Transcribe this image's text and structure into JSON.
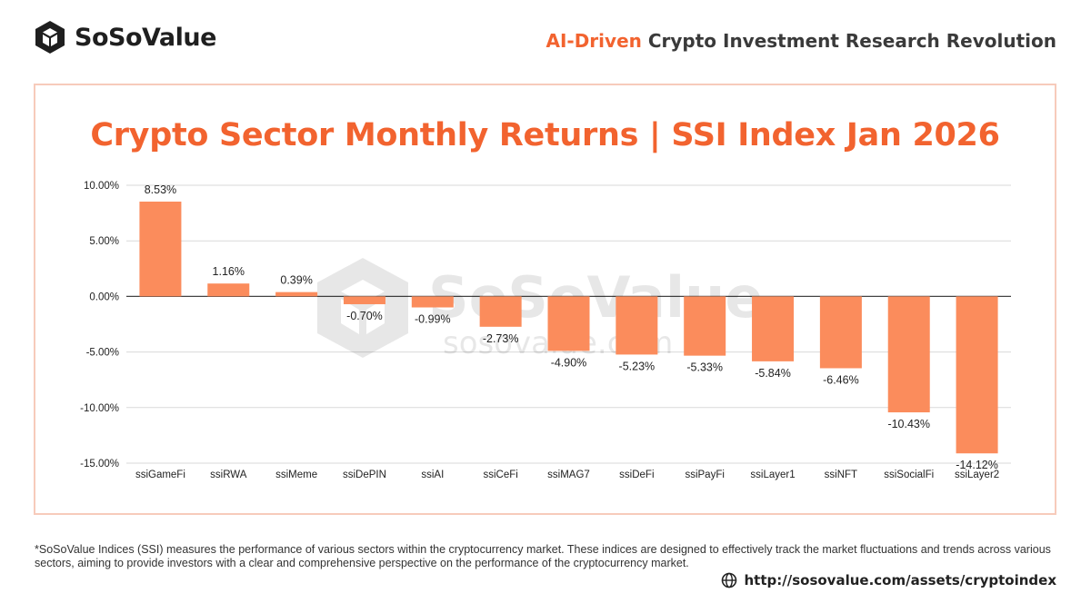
{
  "brand": {
    "logo_text": "SoSoValue",
    "logo_icon": "sosovalue-cube-icon"
  },
  "tagline": {
    "accent": "AI-Driven",
    "rest": " Crypto Investment Research Revolution"
  },
  "watermark": {
    "main": "SoSoValue",
    "sub": "sosovalue.com"
  },
  "colors": {
    "accent": "#f2632f",
    "bar": "#fb8c5c",
    "card_border": "#f7cbbb"
  },
  "chart_data": {
    "type": "bar",
    "title": "Crypto Sector Monthly Returns | SSI Index Jan 2026",
    "xlabel": "",
    "ylabel": "",
    "categories": [
      "ssiGameFi",
      "ssiRWA",
      "ssiMeme",
      "ssiDePIN",
      "ssiAI",
      "ssiCeFi",
      "ssiMAG7",
      "ssiDeFi",
      "ssiPayFi",
      "ssiLayer1",
      "ssiNFT",
      "ssiSocialFi",
      "ssiLayer2"
    ],
    "values": [
      8.53,
      1.16,
      0.39,
      -0.7,
      -0.99,
      -2.73,
      -4.9,
      -5.23,
      -5.33,
      -5.84,
      -6.46,
      -10.43,
      -14.12
    ],
    "data_labels": [
      "8.53%",
      "1.16%",
      "0.39%",
      "-0.70%",
      "-0.99%",
      "-2.73%",
      "-4.90%",
      "-5.23%",
      "-5.33%",
      "-5.84%",
      "-6.46%",
      "-10.43%",
      "-14.12%"
    ],
    "ylim": [
      -15,
      10
    ],
    "yticks": [
      10,
      5,
      0,
      -5,
      -10,
      -15
    ],
    "ytick_labels": [
      "10.00%",
      "5.00%",
      "0.00%",
      "-5.00%",
      "-10.00%",
      "-15.00%"
    ],
    "grid": true,
    "legend": "none"
  },
  "footer": {
    "note": "*SoSoValue Indices (SSI) measures the performance of various sectors within the cryptocurrency market. These indices are designed to effectively track the market fluctuations and trends across various sectors, aiming to provide investors with a clear and comprehensive perspective on the performance of the cryptocurrency market.",
    "link": "http://sosovalue.com/assets/cryptoindex",
    "link_icon": "globe-icon"
  }
}
